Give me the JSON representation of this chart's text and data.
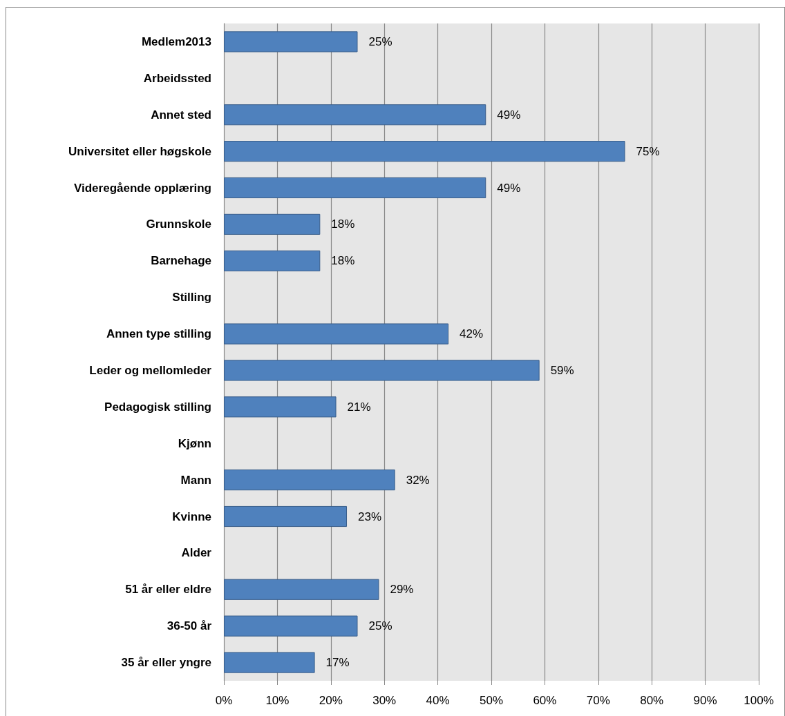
{
  "chart_data": {
    "type": "bar",
    "orientation": "horizontal",
    "categories": [
      "Medlem2013",
      "Arbeidssted",
      "Annet sted",
      "Universitet eller høgskole",
      "Videregående opplæring",
      "Grunnskole",
      "Barnehage",
      "Stilling",
      "Annen type stilling",
      "Leder og mellomleder",
      "Pedagogisk stilling",
      "Kjønn",
      "Mann",
      "Kvinne",
      "Alder",
      "51 år eller eldre",
      "36-50 år",
      "35 år eller yngre"
    ],
    "values": [
      25,
      null,
      49,
      75,
      49,
      18,
      18,
      null,
      42,
      59,
      21,
      null,
      32,
      23,
      null,
      29,
      25,
      17
    ],
    "value_labels": [
      "25%",
      null,
      "49%",
      "75%",
      "49%",
      "18%",
      "18%",
      null,
      "42%",
      "59%",
      "21%",
      null,
      "32%",
      "23%",
      null,
      "29%",
      "25%",
      "17%"
    ],
    "color": "#4f81bd",
    "xlim": [
      0,
      100
    ],
    "xticks": [
      {
        "value": 0,
        "label": "0%"
      },
      {
        "value": 10,
        "label": "10%"
      },
      {
        "value": 20,
        "label": "20%"
      },
      {
        "value": 30,
        "label": "30%"
      },
      {
        "value": 40,
        "label": "40%"
      },
      {
        "value": 50,
        "label": "50%"
      },
      {
        "value": 60,
        "label": "60%"
      },
      {
        "value": 70,
        "label": "70%"
      },
      {
        "value": 80,
        "label": "80%"
      },
      {
        "value": 90,
        "label": "90%"
      },
      {
        "value": 100,
        "label": "100%"
      }
    ],
    "grid": "x"
  }
}
